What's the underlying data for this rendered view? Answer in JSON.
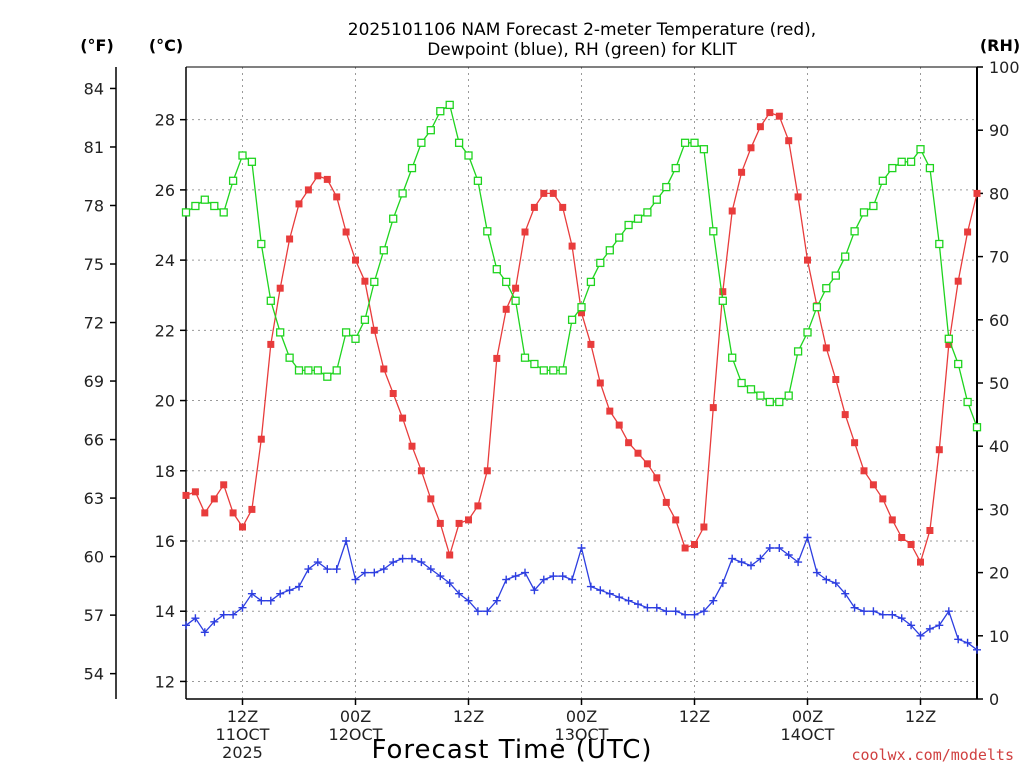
{
  "chart_data": {
    "type": "line",
    "title": [
      "2025101106 NAM Forecast 2-meter Temperature (red),",
      "Dewpoint (blue), RH (green) for KLIT"
    ],
    "xlabel": "Forecast Time (UTC)",
    "units": {
      "fahrenheit": "(°F)",
      "celsius": "(°C)",
      "rh": "(RH)"
    },
    "credit": "coolwx.com/modelts",
    "x_start_hour": 6,
    "x_step_hours": 1,
    "x_range_hours": [
      6,
      90
    ],
    "ylim_celsius": [
      11.5,
      29.5
    ],
    "ylim_rh": [
      0,
      100
    ],
    "fahrenheit_ticks": [
      "54",
      "57",
      "60",
      "63",
      "66",
      "69",
      "72",
      "75",
      "78",
      "81",
      "84"
    ],
    "celsius_ticks": [
      "12",
      "14",
      "16",
      "18",
      "20",
      "22",
      "24",
      "26",
      "28"
    ],
    "rh_ticks": [
      "0",
      "10",
      "20",
      "30",
      "40",
      "50",
      "60",
      "70",
      "80",
      "90",
      "100"
    ],
    "x_ticks": [
      {
        "hour": 12,
        "lines": [
          "12Z",
          "11OCT",
          "2025"
        ]
      },
      {
        "hour": 24,
        "lines": [
          "00Z",
          "12OCT"
        ]
      },
      {
        "hour": 36,
        "lines": [
          "12Z"
        ]
      },
      {
        "hour": 48,
        "lines": [
          "00Z",
          "13OCT"
        ]
      },
      {
        "hour": 60,
        "lines": [
          "12Z"
        ]
      },
      {
        "hour": 72,
        "lines": [
          "00Z",
          "14OCT"
        ]
      },
      {
        "hour": 84,
        "lines": [
          "12Z"
        ]
      }
    ],
    "series": [
      {
        "name": "Temperature",
        "color": "#e83c3c",
        "marker": "filled-square",
        "axis": "celsius",
        "values": [
          17.3,
          17.4,
          16.8,
          17.2,
          17.6,
          16.8,
          16.4,
          16.9,
          18.9,
          21.6,
          23.2,
          24.6,
          25.6,
          26.0,
          26.4,
          26.3,
          25.8,
          24.8,
          24.0,
          23.4,
          22.0,
          20.9,
          20.2,
          19.5,
          18.7,
          18.0,
          17.2,
          16.5,
          15.6,
          16.5,
          16.6,
          17.0,
          18.0,
          21.2,
          22.6,
          23.2,
          24.8,
          25.5,
          25.9,
          25.9,
          25.5,
          24.4,
          22.5,
          21.6,
          20.5,
          19.7,
          19.3,
          18.8,
          18.5,
          18.2,
          17.8,
          17.1,
          16.6,
          15.8,
          15.9,
          16.4,
          19.8,
          23.1,
          25.4,
          26.5,
          27.2,
          27.8,
          28.2,
          28.1,
          27.4,
          25.8,
          24.0,
          22.7,
          21.5,
          20.6,
          19.6,
          18.8,
          18.0,
          17.6,
          17.2,
          16.6,
          16.1,
          15.9,
          15.4,
          16.3,
          18.6,
          21.6,
          23.4,
          24.8,
          25.9
        ]
      },
      {
        "name": "Dewpoint",
        "color": "#2d3ee0",
        "marker": "plus",
        "axis": "celsius",
        "values": [
          13.6,
          13.8,
          13.4,
          13.7,
          13.9,
          13.9,
          14.1,
          14.5,
          14.3,
          14.3,
          14.5,
          14.6,
          14.7,
          15.2,
          15.4,
          15.2,
          15.2,
          16.0,
          14.9,
          15.1,
          15.1,
          15.2,
          15.4,
          15.5,
          15.5,
          15.4,
          15.2,
          15.0,
          14.8,
          14.5,
          14.3,
          14.0,
          14.0,
          14.3,
          14.9,
          15.0,
          15.1,
          14.6,
          14.9,
          15.0,
          15.0,
          14.9,
          15.8,
          14.7,
          14.6,
          14.5,
          14.4,
          14.3,
          14.2,
          14.1,
          14.1,
          14.0,
          14.0,
          13.9,
          13.9,
          14.0,
          14.3,
          14.8,
          15.5,
          15.4,
          15.3,
          15.5,
          15.8,
          15.8,
          15.6,
          15.4,
          16.1,
          15.1,
          14.9,
          14.8,
          14.5,
          14.1,
          14.0,
          14.0,
          13.9,
          13.9,
          13.8,
          13.6,
          13.3,
          13.5,
          13.6,
          14.0,
          13.2,
          13.1,
          12.9
        ]
      },
      {
        "name": "RH",
        "color": "#1fd41f",
        "marker": "open-square",
        "axis": "rh",
        "values": [
          77,
          78,
          79,
          78,
          77,
          82,
          86,
          85,
          72,
          63,
          58,
          54,
          52,
          52,
          52,
          51,
          52,
          58,
          57,
          60,
          66,
          71,
          76,
          80,
          84,
          88,
          90,
          93,
          94,
          88,
          86,
          82,
          74,
          68,
          66,
          63,
          54,
          53,
          52,
          52,
          52,
          60,
          62,
          66,
          69,
          71,
          73,
          75,
          76,
          77,
          79,
          81,
          84,
          88,
          88,
          87,
          74,
          63,
          54,
          50,
          49,
          48,
          47,
          47,
          48,
          55,
          58,
          62,
          65,
          67,
          70,
          74,
          77,
          78,
          82,
          84,
          85,
          85,
          87,
          84,
          72,
          57,
          53,
          47,
          43
        ]
      }
    ]
  }
}
